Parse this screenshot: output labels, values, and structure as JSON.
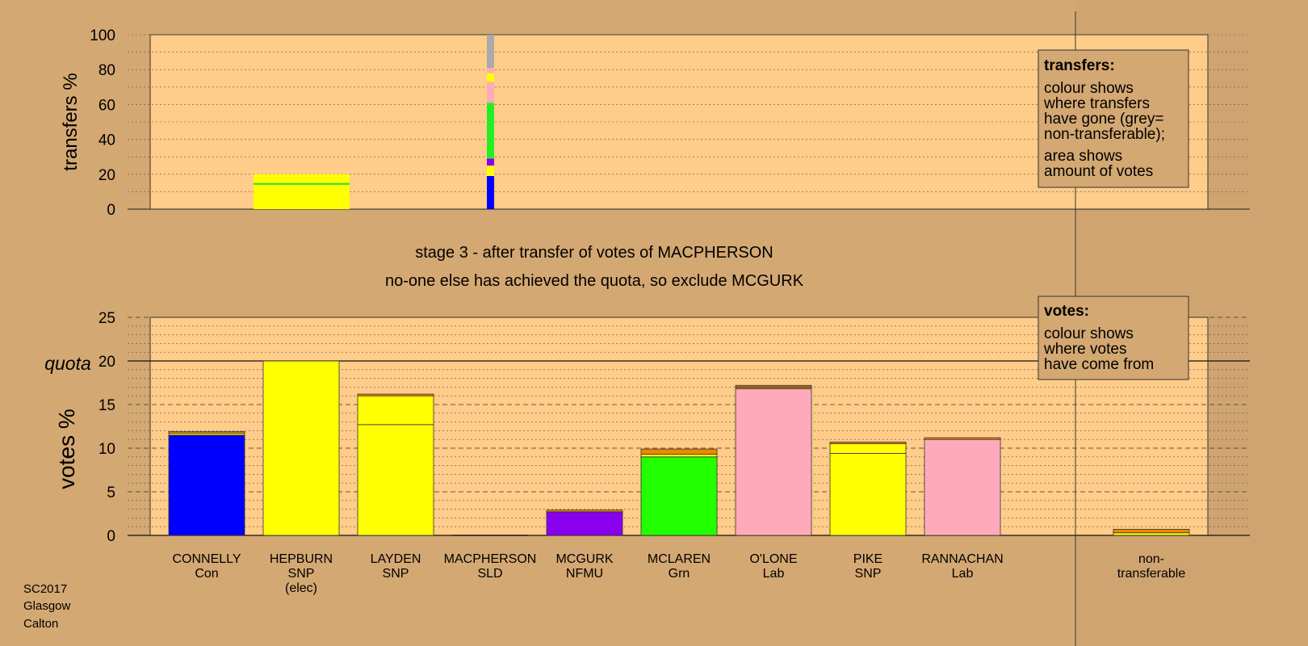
{
  "chart_data": [
    {
      "type": "bar",
      "name": "transfers",
      "ylabel": "transfers %",
      "ylim": [
        0,
        100
      ],
      "yticks": [
        0,
        20,
        40,
        60,
        80,
        100
      ],
      "grid": true,
      "legend": {
        "title": "transfers:",
        "lines": [
          "colour shows",
          "where transfers",
          "have gone (grey=",
          "non-transferable);"
        ],
        "lines2": [
          "area shows",
          "amount of votes"
        ]
      },
      "bars": [
        {
          "candidate": "HEPBURN",
          "segments": [
            {
              "party": "SNP",
              "from": 0,
              "to": 14,
              "color": "#ffff00"
            },
            {
              "party": "Grn",
              "from": 14,
              "to": 15,
              "color": "#33dd33"
            },
            {
              "party": "SNP",
              "from": 15,
              "to": 20,
              "color": "#ffff00"
            }
          ]
        },
        {
          "candidate": "MACPHERSON",
          "segments": [
            {
              "party": "Con",
              "from": 0,
              "to": 19,
              "color": "#0000ff"
            },
            {
              "party": "SNP",
              "from": 19,
              "to": 25,
              "color": "#ffff00"
            },
            {
              "party": "NFMU",
              "from": 25,
              "to": 29,
              "color": "#8800ee"
            },
            {
              "party": "Grn",
              "from": 29,
              "to": 61,
              "color": "#22ee22"
            },
            {
              "party": "Lab",
              "from": 61,
              "to": 73,
              "color": "#ffaabb"
            },
            {
              "party": "SNP",
              "from": 73,
              "to": 78,
              "color": "#ffff00"
            },
            {
              "party": "Lab",
              "from": 78,
              "to": 81,
              "color": "#ffaabb"
            },
            {
              "party": "non-transferable",
              "from": 81,
              "to": 100,
              "color": "#aaaaaa"
            }
          ]
        }
      ]
    },
    {
      "type": "bar",
      "name": "votes",
      "title_lines": [
        "stage 3 - after transfer of votes of MACPHERSON",
        "no-one else has achieved the quota, so exclude MCGURK"
      ],
      "ylabel": "votes %",
      "ylim": [
        0,
        25
      ],
      "yticks": [
        0,
        5,
        10,
        15,
        20,
        25
      ],
      "quota": 20,
      "quota_label": "quota",
      "grid": true,
      "legend": {
        "title": "votes:",
        "lines": [
          "colour shows",
          "where votes",
          "have come from"
        ]
      },
      "categories": [
        {
          "name": "CONNELLY",
          "party": "Con",
          "status": "",
          "segments": [
            {
              "value": 11.5,
              "color": "#0000ff"
            },
            {
              "value": 0.2,
              "color": "#ffff00"
            },
            {
              "value": 0.2,
              "color": "#ee8800"
            }
          ]
        },
        {
          "name": "HEPBURN",
          "party": "SNP",
          "status": "(elec)",
          "segments": [
            {
              "value": 20.0,
              "color": "#ffff00"
            }
          ]
        },
        {
          "name": "LAYDEN",
          "party": "SNP",
          "status": "",
          "segments": [
            {
              "value": 12.7,
              "color": "#ffff00"
            },
            {
              "value": 3.3,
              "color": "#ffff00"
            },
            {
              "value": 0.2,
              "color": "#ee8800"
            }
          ]
        },
        {
          "name": "MACPHERSON",
          "party": "SLD",
          "status": "",
          "segments": []
        },
        {
          "name": "MCGURK",
          "party": "NFMU",
          "status": "",
          "segments": [
            {
              "value": 2.7,
              "color": "#8800ee"
            },
            {
              "value": 0.2,
              "color": "#ee8800"
            }
          ]
        },
        {
          "name": "MCLAREN",
          "party": "Grn",
          "status": "",
          "segments": [
            {
              "value": 9.0,
              "color": "#22ff00"
            },
            {
              "value": 0.3,
              "color": "#ffff00"
            },
            {
              "value": 0.6,
              "color": "#ee8800"
            }
          ]
        },
        {
          "name": "O'LONE",
          "party": "Lab",
          "status": "",
          "segments": [
            {
              "value": 16.8,
              "color": "#ffaabb"
            },
            {
              "value": 0.2,
              "color": "#ee8800"
            },
            {
              "value": 0.2,
              "color": "#aa7733"
            }
          ]
        },
        {
          "name": "PIKE",
          "party": "SNP",
          "status": "",
          "segments": [
            {
              "value": 9.4,
              "color": "#ffff00"
            },
            {
              "value": 1.1,
              "color": "#ffff00"
            },
            {
              "value": 0.2,
              "color": "#ee8800"
            }
          ]
        },
        {
          "name": "RANNACHAN",
          "party": "Lab",
          "status": "",
          "segments": [
            {
              "value": 11.0,
              "color": "#ffaabb"
            },
            {
              "value": 0.2,
              "color": "#ee8800"
            }
          ]
        }
      ],
      "nontransferable": {
        "label_lines": [
          "non-",
          "transferable"
        ],
        "segments": [
          {
            "value": 0.3,
            "color": "#ffff00"
          },
          {
            "value": 0.4,
            "color": "#ee8800"
          }
        ]
      }
    }
  ],
  "footer": {
    "lines": [
      "SC2017",
      "Glasgow",
      "Calton"
    ]
  },
  "colors": {
    "background": "#d4a872",
    "panel": "#ffcc8a",
    "legend_box": "#d4a872"
  }
}
